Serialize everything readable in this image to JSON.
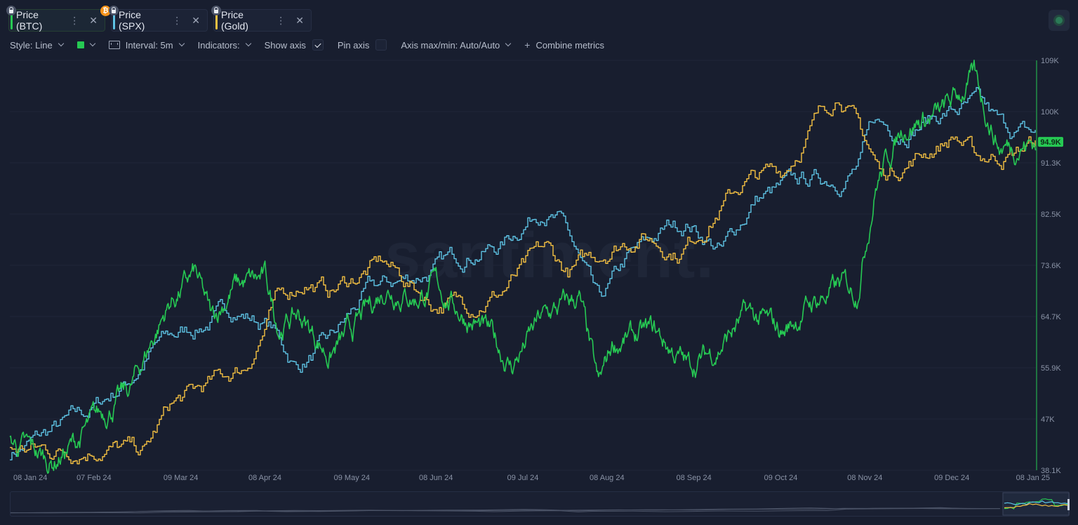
{
  "tabs": [
    {
      "label": "Price (BTC)",
      "color": "#26c953",
      "active": true
    },
    {
      "label": "Price (SPX)",
      "color": "#5ec3e4",
      "active": false
    },
    {
      "label": "Price (Gold)",
      "color": "#f5c142",
      "active": false
    }
  ],
  "toolbar": {
    "style_label": "Style: Line",
    "color_swatch": "#26c953",
    "interval_label": "Interval: 5m",
    "indicators_label": "Indicators:",
    "show_axis_label": "Show axis",
    "pin_axis_label": "Pin axis",
    "axis_maxmin_label": "Axis max/min: Auto/Auto",
    "combine_label": "Combine metrics"
  },
  "watermark": "santiment.",
  "chart_data": {
    "type": "line",
    "x_ticks": [
      "08 Jan 24",
      "07 Feb 24",
      "09 Mar 24",
      "08 Apr 24",
      "09 May 24",
      "08 Jun 24",
      "09 Jul 24",
      "08 Aug 24",
      "08 Sep 24",
      "09 Oct 24",
      "08 Nov 24",
      "09 Dec 24",
      "08 Jan 25"
    ],
    "y_ticks": [
      "109K",
      "100K",
      "91.3K",
      "82.5K",
      "73.6K",
      "64.7K",
      "55.9K",
      "47K",
      "38.1K"
    ],
    "ylim": [
      38100,
      109000
    ],
    "current_value_label": "94.9K",
    "series": [
      {
        "name": "Price (BTC)",
        "color": "#26c953",
        "x": [
          "2024-01-08",
          "2024-01-15",
          "2024-01-23",
          "2024-02-01",
          "2024-02-10",
          "2024-02-20",
          "2024-02-28",
          "2024-03-05",
          "2024-03-14",
          "2024-03-20",
          "2024-03-28",
          "2024-04-08",
          "2024-04-13",
          "2024-04-20",
          "2024-05-01",
          "2024-05-09",
          "2024-05-21",
          "2024-06-01",
          "2024-06-08",
          "2024-06-18",
          "2024-06-28",
          "2024-07-05",
          "2024-07-15",
          "2024-07-29",
          "2024-08-05",
          "2024-08-10",
          "2024-08-25",
          "2024-09-06",
          "2024-09-16",
          "2024-09-27",
          "2024-10-10",
          "2024-10-20",
          "2024-10-31",
          "2024-11-05",
          "2024-11-12",
          "2024-11-22",
          "2024-12-05",
          "2024-12-17",
          "2024-12-26",
          "2025-01-08"
        ],
        "values": [
          43000,
          41500,
          39500,
          43000,
          48000,
          52000,
          61000,
          67000,
          72000,
          64000,
          70000,
          71000,
          63000,
          65000,
          58000,
          62000,
          70000,
          68000,
          70000,
          65000,
          61000,
          56000,
          64000,
          68000,
          52000,
          60000,
          62000,
          56000,
          59000,
          65000,
          62000,
          67000,
          70000,
          69000,
          88000,
          98000,
          99500,
          106000,
          94000,
          94900
        ]
      },
      {
        "name": "Price (SPX)",
        "color": "#5ec3e4",
        "x": [
          "2024-01-08",
          "2024-01-20",
          "2024-02-05",
          "2024-02-20",
          "2024-03-01",
          "2024-03-15",
          "2024-03-28",
          "2024-04-10",
          "2024-04-19",
          "2024-05-01",
          "2024-05-15",
          "2024-05-28",
          "2024-06-08",
          "2024-06-20",
          "2024-07-01",
          "2024-07-16",
          "2024-07-24",
          "2024-08-05",
          "2024-08-15",
          "2024-08-30",
          "2024-09-06",
          "2024-09-18",
          "2024-09-30",
          "2024-10-18",
          "2024-10-31",
          "2024-11-06",
          "2024-11-11",
          "2024-11-20",
          "2024-12-06",
          "2024-12-18",
          "2024-12-27",
          "2025-01-08"
        ],
        "values": [
          41000,
          44000,
          48000,
          54000,
          60000,
          63000,
          66000,
          63000,
          56000,
          60000,
          69000,
          71000,
          73000,
          76000,
          77000,
          84000,
          80000,
          66000,
          74000,
          80000,
          81000,
          76000,
          85000,
          88000,
          89000,
          91000,
          98000,
          97000,
          100000,
          101000,
          97000,
          96000
        ]
      },
      {
        "name": "Price (Gold)",
        "color": "#f5c142",
        "x": [
          "2024-01-08",
          "2024-01-25",
          "2024-02-10",
          "2024-02-25",
          "2024-03-05",
          "2024-03-20",
          "2024-04-01",
          "2024-04-12",
          "2024-04-22",
          "2024-05-01",
          "2024-05-20",
          "2024-06-07",
          "2024-06-20",
          "2024-07-01",
          "2024-07-17",
          "2024-07-25",
          "2024-08-10",
          "2024-08-20",
          "2024-09-03",
          "2024-09-20",
          "2024-09-26",
          "2024-10-10",
          "2024-10-22",
          "2024-10-30",
          "2024-11-07",
          "2024-11-14",
          "2024-11-25",
          "2024-12-10",
          "2024-12-18",
          "2024-12-31",
          "2025-01-08"
        ],
        "values": [
          42000,
          41500,
          42500,
          41000,
          49000,
          53000,
          56000,
          67000,
          71000,
          69000,
          74000,
          67000,
          67000,
          69000,
          76000,
          72000,
          77000,
          79000,
          76000,
          85000,
          88000,
          90000,
          99000,
          104000,
          96000,
          89000,
          92000,
          96000,
          92000,
          93000,
          95000
        ]
      }
    ]
  }
}
